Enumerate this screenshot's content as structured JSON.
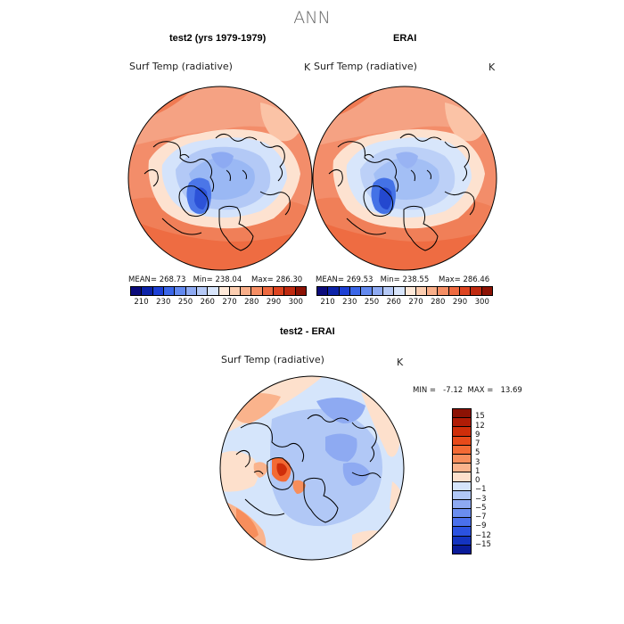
{
  "page_title": "ANN",
  "panels": [
    {
      "title": "test2 (yrs 1979-1979)",
      "variable": "Surf Temp (radiative)",
      "units": "K",
      "mean_label": "MEAN=",
      "mean": "268.73",
      "min_label": "Min=",
      "min": "238.04",
      "max_label": "Max=",
      "max": "286.30"
    },
    {
      "title": "ERAI",
      "variable": "Surf Temp (radiative)",
      "units": "K",
      "mean_label": "MEAN=",
      "mean": "269.53",
      "min_label": "Min=",
      "min": "238.55",
      "max_label": "Max=",
      "max": "286.46"
    }
  ],
  "abs_colorbar": {
    "labels": [
      "210",
      "230",
      "250",
      "260",
      "270",
      "280",
      "290",
      "300"
    ],
    "colors": [
      "#0a0a7a",
      "#0b22a8",
      "#1c3fd4",
      "#3a66e8",
      "#6289ef",
      "#8eaaf2",
      "#b5c9f6",
      "#d8e5fb",
      "#fde8d8",
      "#fbcdb0",
      "#f8ae89",
      "#f58e64",
      "#ee6a40",
      "#dd4420",
      "#bf2a10",
      "#8c1204"
    ]
  },
  "diff_panel": {
    "title": "test2 - ERAI",
    "variable": "Surf Temp (radiative)",
    "units": "K",
    "min_label": "MIN =",
    "min": "-7.12",
    "max_label": "MAX =",
    "max": "13.69"
  },
  "diff_colorbar": {
    "labels": [
      "15",
      "12",
      "9",
      "7",
      "5",
      "3",
      "1",
      "0",
      "−1",
      "−3",
      "−5",
      "−7",
      "−9",
      "−12",
      "−15"
    ],
    "colors": [
      "#8c1204",
      "#b01c06",
      "#cf2e0a",
      "#e84a1a",
      "#f36a34",
      "#f78e5c",
      "#fab38c",
      "#fde0cc",
      "#d5e5fb",
      "#b1c8f6",
      "#8eaaf2",
      "#6a8def",
      "#4a70ec",
      "#2b52e0",
      "#1434c0",
      "#0a1c9a"
    ]
  }
}
